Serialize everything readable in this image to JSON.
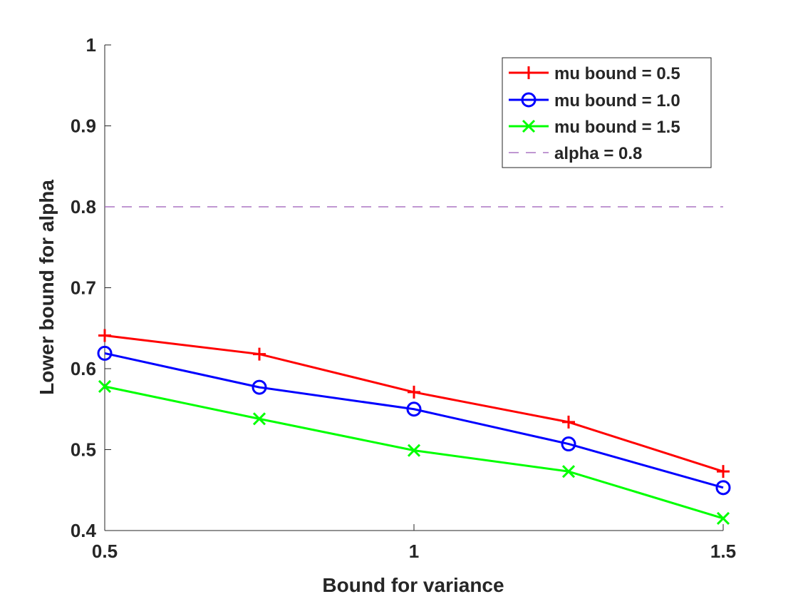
{
  "chart_data": {
    "type": "line",
    "xlabel": "Bound for variance",
    "ylabel": "Lower bound for alpha",
    "xlim": [
      0.5,
      1.5
    ],
    "ylim": [
      0.4,
      1.0
    ],
    "x_ticks": [
      0.5,
      1,
      1.5
    ],
    "x_tick_labels": [
      "0.5",
      "1",
      "1.5"
    ],
    "y_ticks": [
      0.4,
      0.5,
      0.6,
      0.7,
      0.8,
      0.9,
      1.0
    ],
    "y_tick_labels": [
      "0.4",
      "0.5",
      "0.6",
      "0.7",
      "0.8",
      "0.9",
      "1"
    ],
    "grid": false,
    "legend_position": "top-right",
    "x": [
      0.5,
      0.75,
      1.0,
      1.25,
      1.5
    ],
    "series": [
      {
        "name": "mu bound = 0.5",
        "color": "#ff0000",
        "marker": "plus",
        "values": [
          0.641,
          0.618,
          0.571,
          0.534,
          0.473
        ]
      },
      {
        "name": "mu bound = 1.0",
        "color": "#0000ff",
        "marker": "circle",
        "values": [
          0.619,
          0.577,
          0.55,
          0.507,
          0.453
        ]
      },
      {
        "name": "mu bound = 1.5",
        "color": "#00ff00",
        "marker": "x",
        "values": [
          0.578,
          0.538,
          0.499,
          0.473,
          0.415
        ]
      }
    ],
    "reference_lines": [
      {
        "name": "alpha = 0.8",
        "y": 0.8,
        "color": "#9b59b6",
        "style": "dashed"
      }
    ]
  }
}
